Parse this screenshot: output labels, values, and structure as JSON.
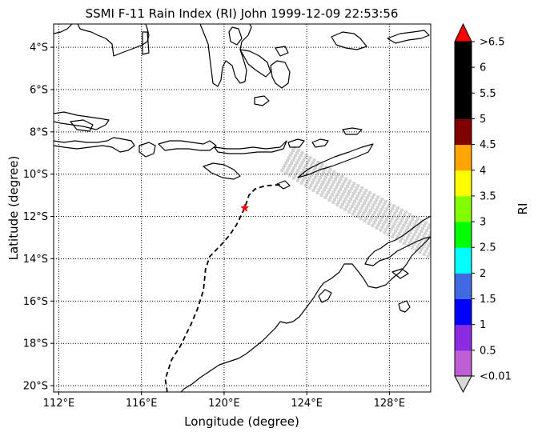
{
  "title": "SSMI F-11 Rain Index (RI) John 1999-12-09 22:53:56",
  "xlabel": "Longitude (degree)",
  "ylabel": "Latitude (degree)",
  "colorbar": {
    "label": "RI",
    "ticks": [
      "<0.01",
      "0.5",
      "1",
      "1.5",
      "2",
      "2.5",
      "3",
      "3.5",
      "4",
      "4.5",
      "5",
      "5.5",
      "6",
      ">6.5"
    ],
    "colors": [
      "#bf5fd6",
      "#8a2be2",
      "#0000ff",
      "#4169e1",
      "#00ffff",
      "#00ff00",
      "#7fff00",
      "#ffff00",
      "#ffa500",
      "#800000",
      "#000000",
      "#000000",
      "#000000"
    ],
    "under_color": "#d8d8d8",
    "over_color": "#ff0000"
  },
  "map": {
    "lon_range": [
      111.75,
      130.0
    ],
    "lat_range": [
      -20.3,
      -2.9
    ],
    "x_ticks": [
      112,
      116,
      120,
      124,
      128
    ],
    "x_tick_labels": [
      "112°E",
      "116°E",
      "120°E",
      "124°E",
      "128°E"
    ],
    "y_ticks": [
      -4,
      -6,
      -8,
      -10,
      -12,
      -14,
      -16,
      -18,
      -20
    ],
    "y_tick_labels": [
      "4°S",
      "6°S",
      "8°S",
      "10°S",
      "12°S",
      "14°S",
      "16°S",
      "18°S",
      "20°S"
    ],
    "grid": true,
    "grid_style": "dotted",
    "land_outline_color": "#000000",
    "swath_color": "#d3d3d3",
    "track_color": "#000000",
    "track_style": "dashed",
    "storm_marker_color": "#ff0000",
    "storm_center": {
      "lon": 121.0,
      "lat": -11.6
    },
    "track": [
      {
        "lon": 122.7,
        "lat": -10.5
      },
      {
        "lon": 122.0,
        "lat": -10.55
      },
      {
        "lon": 121.5,
        "lat": -10.7
      },
      {
        "lon": 121.2,
        "lat": -11.0
      },
      {
        "lon": 121.0,
        "lat": -11.6
      },
      {
        "lon": 120.6,
        "lat": -12.4
      },
      {
        "lon": 120.25,
        "lat": -12.9
      },
      {
        "lon": 119.9,
        "lat": -13.3
      },
      {
        "lon": 119.3,
        "lat": -13.9
      },
      {
        "lon": 119.1,
        "lat": -14.5
      },
      {
        "lon": 119.0,
        "lat": -15.5
      },
      {
        "lon": 118.7,
        "lat": -16.4
      },
      {
        "lon": 118.4,
        "lat": -17.1
      },
      {
        "lon": 117.9,
        "lat": -18.1
      },
      {
        "lon": 117.45,
        "lat": -18.8
      },
      {
        "lon": 117.15,
        "lat": -19.7
      },
      {
        "lon": 117.25,
        "lat": -20.3
      }
    ]
  },
  "chart_data": {
    "type": "map",
    "title": "SSMI F-11 Rain Index (RI) John 1999-12-09 22:53:56",
    "xlabel": "Longitude (degree)",
    "ylabel": "Latitude (degree)",
    "xlim": [
      111.75,
      130.0
    ],
    "ylim": [
      -20.3,
      -2.9
    ],
    "series": [
      {
        "name": "",
        "kind": "swath",
        "value": "<0.01"
      },
      {
        "name": "",
        "kind": "track"
      }
    ]
  }
}
